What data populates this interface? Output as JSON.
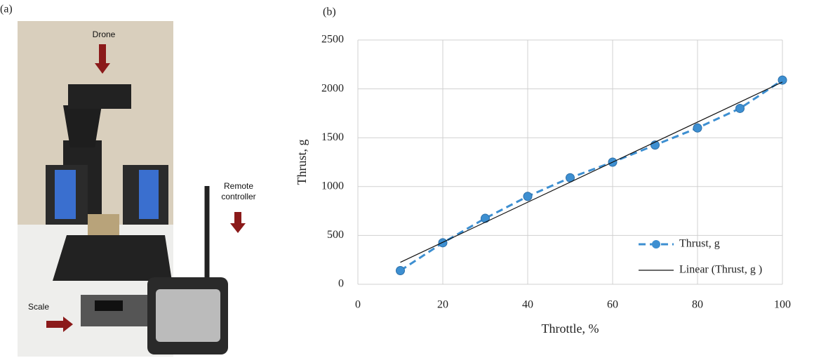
{
  "panel_a": {
    "label": "(a)",
    "annotations": {
      "drone": "Drone",
      "remote": "Remote controller",
      "scale": "Scale"
    }
  },
  "chart_data": {
    "type": "line",
    "panel_label": "(b)",
    "xlabel": "Throttle, %",
    "ylabel": "Thrust, g",
    "xlim": [
      0,
      100
    ],
    "xticks": [
      0,
      20,
      40,
      60,
      80,
      100
    ],
    "ylim": [
      0,
      2500
    ],
    "yticks": [
      0,
      500,
      1000,
      1500,
      2000,
      2500
    ],
    "grid": true,
    "legend": "lower right",
    "series": [
      {
        "name": "Thrust, g",
        "color": "#3d8fd1",
        "style": "dashed-markers",
        "x": [
          10,
          20,
          30,
          40,
          50,
          60,
          70,
          80,
          90,
          100
        ],
        "values": [
          140,
          425,
          675,
          900,
          1090,
          1250,
          1425,
          1600,
          1800,
          2090
        ]
      },
      {
        "name": "Linear (Thrust, g )",
        "color": "#111111",
        "style": "solid",
        "x": [
          10,
          100
        ],
        "values": [
          225,
          2070
        ]
      }
    ]
  }
}
